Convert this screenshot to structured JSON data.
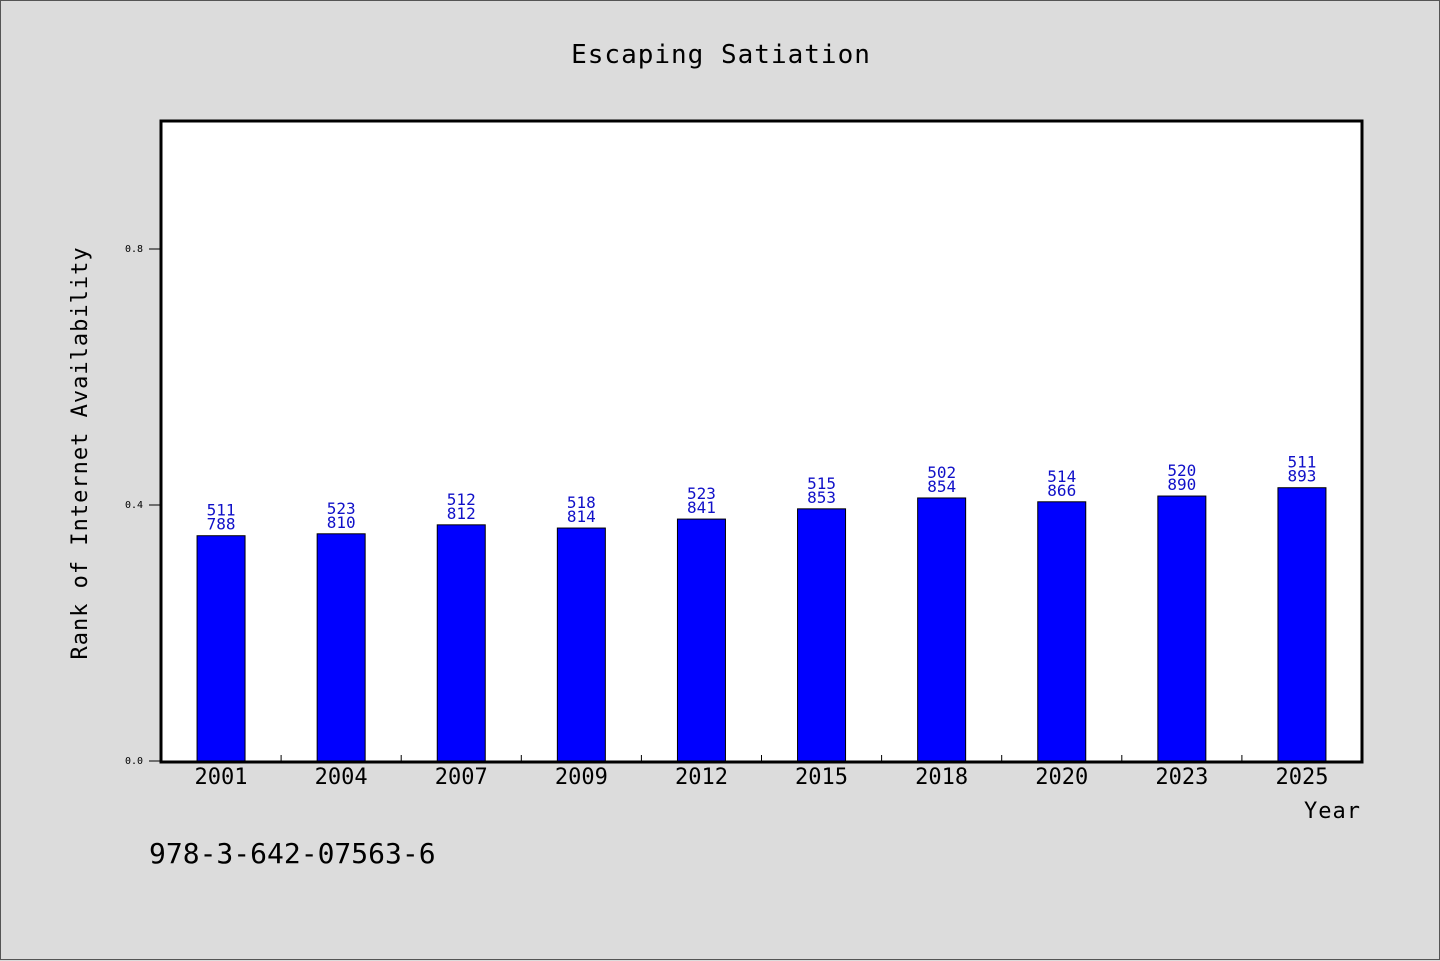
{
  "chart_data": {
    "type": "bar",
    "title": "Escaping Satiation",
    "xlabel": "Year",
    "ylabel": "Rank of Internet Availability",
    "categories": [
      "2001",
      "2004",
      "2007",
      "2009",
      "2012",
      "2015",
      "2018",
      "2020",
      "2023",
      "2025"
    ],
    "values": [
      0.352,
      0.355,
      0.369,
      0.364,
      0.378,
      0.394,
      0.411,
      0.405,
      0.414,
      0.427
    ],
    "labels_top": [
      "511",
      "523",
      "512",
      "518",
      "523",
      "515",
      "502",
      "514",
      "520",
      "511"
    ],
    "labels_bottom": [
      "788",
      "810",
      "812",
      "814",
      "841",
      "853",
      "854",
      "866",
      "890",
      "893"
    ],
    "ylim": [
      0,
      1.0
    ],
    "yticks": [
      "0.0",
      "0.4",
      "0.8"
    ],
    "grid": false,
    "bar_color": "#0000ff",
    "label_color": "#1010c8"
  },
  "footer": {
    "code": "978-3-642-07563-6"
  }
}
